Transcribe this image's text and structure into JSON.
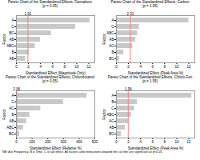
{
  "chart_data": [
    {
      "type": "bar",
      "orientation": "horizontal",
      "title": "Pareto Chart of the Standardized Effects, Farmaburc",
      "subtitle": "(p = 0.05)",
      "categories": [
        "A",
        "C",
        "BC",
        "AB",
        "ABC",
        "B",
        "AB"
      ],
      "values": [
        12.2,
        9.8,
        5.8,
        4.0,
        3.1,
        2.1,
        1.5
      ],
      "color": "#c8c8c8",
      "xlabel": "Standardized Effect (Magnitude Only)",
      "ylabel": "Factor",
      "xlim": [
        0,
        13
      ],
      "xticks": [
        0,
        2,
        4,
        6,
        8,
        10,
        12
      ],
      "grid": false,
      "annotations": [
        {
          "type": "vline",
          "x": 1.91,
          "label": "1.91",
          "color": "#f08080"
        }
      ]
    },
    {
      "type": "bar",
      "orientation": "horizontal",
      "title": "Pareto Chart of the Standardized Effects, Carbon",
      "subtitle": "(p = 1.95)",
      "categories": [
        "A",
        "C",
        "ABC",
        "AB",
        "AC",
        "B",
        "BC"
      ],
      "values": [
        12.0,
        3.8,
        3.5,
        3.2,
        2.7,
        1.2,
        0.5
      ],
      "color": "#c8c8c8",
      "xlabel": "Standardized Effect (Peak Area %)",
      "ylabel": "Factor",
      "xlim": [
        0,
        13
      ],
      "xticks": [
        0,
        2,
        4,
        6,
        8,
        10,
        12
      ],
      "grid": false,
      "annotations": [
        {
          "type": "vline",
          "x": 2.31,
          "label": "2.31",
          "color": "#f08080"
        }
      ]
    },
    {
      "type": "bar",
      "orientation": "horizontal",
      "title": "Pareto Chart of the Standardized Effects, Chlorobutanol",
      "subtitle": "(p = 0.05)",
      "categories": [
        "A",
        "C",
        "AC",
        "B",
        "AB",
        "ABC",
        "BC"
      ],
      "values": [
        450,
        300,
        155,
        85,
        65,
        45,
        20
      ],
      "color": "#c8c8c8",
      "xlabel": "Standardized Effect (Relative %)",
      "ylabel": "Factor",
      "xlim": [
        0,
        500
      ],
      "xticks": [
        0,
        100,
        200,
        300,
        400,
        500
      ],
      "grid": false,
      "annotations": [
        {
          "type": "vline",
          "x": 2.06,
          "label": "2.06",
          "color": "#f08080"
        }
      ]
    },
    {
      "type": "bar",
      "orientation": "horizontal",
      "title": "Pareto Chart of the Standardized Effects, Chloro-Fen",
      "subtitle": "(p = 1.95)",
      "categories": [
        "A",
        "B",
        "C",
        "ABC",
        "AC",
        "AB",
        "BC"
      ],
      "values": [
        12.5,
        3.5,
        3.0,
        2.5,
        2.0,
        1.5,
        0.8
      ],
      "color": "#c8c8c8",
      "xlabel": "Standardized Effect (Peak Area %)",
      "ylabel": "Factor",
      "xlim": [
        0,
        13
      ],
      "xticks": [
        0,
        2,
        4,
        6,
        8,
        10,
        12
      ],
      "grid": false,
      "annotations": [
        {
          "type": "vline",
          "x": 1.96,
          "label": "1.96",
          "color": "#f08080"
        }
      ]
    }
  ],
  "note": "NB: A = Frequency, B = Time, C = salt effect. All factors and interactions beyond the cut line are significant at p<0.05"
}
